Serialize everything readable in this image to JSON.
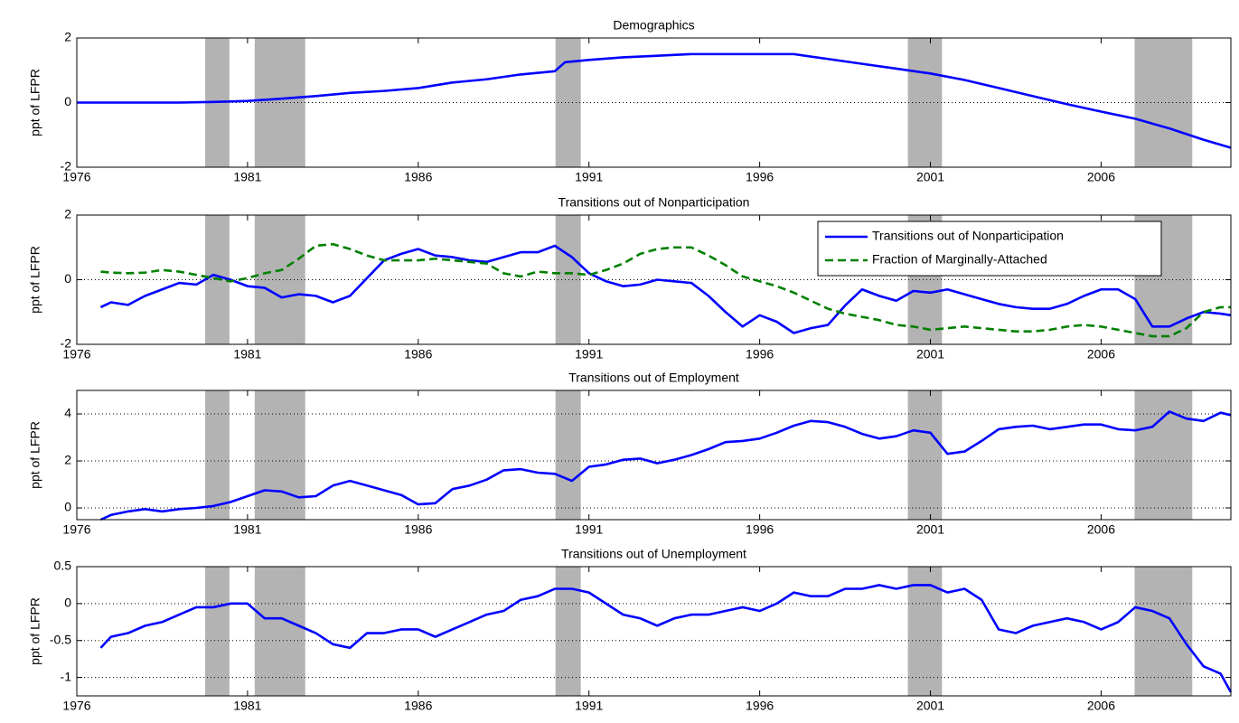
{
  "chart_data": [
    {
      "type": "line",
      "title": "Demographics",
      "y_label": "ppt of LFPR",
      "x": [
        1976,
        1977,
        1978,
        1979,
        1980,
        1981,
        1982,
        1983,
        1984,
        1985,
        1986,
        1987,
        1988,
        1989,
        1990,
        1990.3,
        1991,
        1992,
        1993,
        1994,
        1995,
        1996,
        1997,
        1998,
        1999,
        2000,
        2001,
        2002,
        2003,
        2004,
        2005,
        2006,
        2007,
        2008,
        2009,
        2009.8
      ],
      "series": [
        {
          "name": "Demographics",
          "color": "#0000ff",
          "linestyle": "solid",
          "values": [
            0,
            0,
            0,
            0,
            0.02,
            0.05,
            0.12,
            0.2,
            0.3,
            0.36,
            0.45,
            0.62,
            0.72,
            0.87,
            0.97,
            1.25,
            1.32,
            1.4,
            1.45,
            1.5,
            1.5,
            1.5,
            1.5,
            1.35,
            1.2,
            1.05,
            0.9,
            0.7,
            0.45,
            0.2,
            -0.05,
            -0.28,
            -0.5,
            -0.8,
            -1.15,
            -1.4
          ]
        }
      ],
      "xlim": [
        1976,
        2009.8
      ],
      "xticks": [
        1976,
        1981,
        1986,
        1991,
        1996,
        2001,
        2006
      ],
      "ylim": [
        -2,
        2
      ],
      "yticks": [
        -2,
        0,
        2
      ],
      "grid": true,
      "shade": [
        [
          1979.76,
          1980.47
        ],
        [
          1981.21,
          1982.69
        ],
        [
          1990.02,
          1990.76
        ],
        [
          2000.34,
          2001.34
        ],
        [
          2006.98,
          2008.67
        ]
      ],
      "shade_color": "#b3b3b3"
    },
    {
      "type": "line",
      "title": "Transitions out of Nonparticipation",
      "y_label": "ppt of LFPR",
      "x": [
        1976.7,
        1977,
        1977.5,
        1978,
        1978.5,
        1979,
        1979.5,
        1980,
        1980.5,
        1981,
        1981.5,
        1982,
        1982.5,
        1983,
        1983.5,
        1984,
        1984.5,
        1985,
        1985.5,
        1986,
        1986.5,
        1987,
        1987.5,
        1988,
        1988.5,
        1989,
        1989.5,
        1990,
        1990.5,
        1991,
        1991.5,
        1992,
        1992.5,
        1993,
        1993.5,
        1994,
        1994.5,
        1995,
        1995.5,
        1996,
        1996.5,
        1997,
        1997.5,
        1998,
        1998.5,
        1999,
        1999.5,
        2000,
        2000.5,
        2001,
        2001.5,
        2002,
        2002.5,
        2003,
        2003.5,
        2004,
        2004.5,
        2005,
        2005.5,
        2006,
        2006.5,
        2007,
        2007.5,
        2008,
        2008.5,
        2009,
        2009.5,
        2009.8
      ],
      "series": [
        {
          "name": "Transitions out of Nonparticipation",
          "color": "#0000ff",
          "linestyle": "solid",
          "values": [
            -0.85,
            -0.7,
            -0.78,
            -0.5,
            -0.3,
            -0.1,
            -0.15,
            0.15,
            0,
            -0.2,
            -0.25,
            -0.55,
            -0.45,
            -0.5,
            -0.7,
            -0.5,
            0.05,
            0.6,
            0.8,
            0.95,
            0.75,
            0.7,
            0.6,
            0.55,
            0.7,
            0.85,
            0.85,
            1.05,
            0.7,
            0.2,
            -0.05,
            -0.2,
            -0.15,
            0,
            -0.05,
            -0.1,
            -0.5,
            -1,
            -1.45,
            -1.1,
            -1.3,
            -1.65,
            -1.5,
            -1.4,
            -0.8,
            -0.3,
            -0.5,
            -0.65,
            -0.35,
            -0.4,
            -0.3,
            -0.45,
            -0.6,
            -0.75,
            -0.85,
            -0.9,
            -0.9,
            -0.75,
            -0.5,
            -0.3,
            -0.3,
            -0.6,
            -1.45,
            -1.45,
            -1.2,
            -1,
            -1.05,
            -1.1
          ]
        },
        {
          "name": "Fraction of Marginally-Attached",
          "color": "#008000",
          "linestyle": "dashed",
          "values": [
            0.25,
            0.22,
            0.2,
            0.22,
            0.3,
            0.25,
            0.15,
            0.05,
            -0.05,
            0.05,
            0.2,
            0.3,
            0.65,
            1.05,
            1.1,
            0.95,
            0.75,
            0.6,
            0.6,
            0.6,
            0.65,
            0.6,
            0.55,
            0.5,
            0.2,
            0.1,
            0.25,
            0.2,
            0.2,
            0.15,
            0.3,
            0.5,
            0.8,
            0.95,
            1,
            1,
            0.75,
            0.45,
            0.1,
            -0.05,
            -0.2,
            -0.4,
            -0.65,
            -0.9,
            -1.05,
            -1.15,
            -1.25,
            -1.4,
            -1.45,
            -1.55,
            -1.5,
            -1.45,
            -1.5,
            -1.55,
            -1.6,
            -1.6,
            -1.55,
            -1.45,
            -1.4,
            -1.45,
            -1.55,
            -1.65,
            -1.75,
            -1.75,
            -1.5,
            -1,
            -0.85,
            -0.85
          ]
        }
      ],
      "legend": "upper right",
      "xlim": [
        1976,
        2009.8
      ],
      "xticks": [
        1976,
        1981,
        1986,
        1991,
        1996,
        2001,
        2006
      ],
      "ylim": [
        -2,
        2
      ],
      "yticks": [
        -2,
        0,
        2
      ],
      "grid": true,
      "shade": [
        [
          1979.76,
          1980.47
        ],
        [
          1981.21,
          1982.69
        ],
        [
          1990.02,
          1990.76
        ],
        [
          2000.34,
          2001.34
        ],
        [
          2006.98,
          2008.67
        ]
      ],
      "shade_color": "#b3b3b3"
    },
    {
      "type": "line",
      "title": "Transitions out of Employment",
      "y_label": "ppt of LFPR",
      "x": [
        1976.7,
        1977,
        1977.5,
        1978,
        1978.5,
        1979,
        1979.5,
        1980,
        1980.5,
        1981,
        1981.5,
        1982,
        1982.5,
        1983,
        1983.5,
        1984,
        1984.5,
        1985,
        1985.5,
        1986,
        1986.5,
        1987,
        1987.5,
        1988,
        1988.5,
        1989,
        1989.5,
        1990,
        1990.5,
        1991,
        1991.5,
        1992,
        1992.5,
        1993,
        1993.5,
        1994,
        1994.5,
        1995,
        1995.5,
        1996,
        1996.5,
        1997,
        1997.5,
        1998,
        1998.5,
        1999,
        1999.5,
        2000,
        2000.5,
        2001,
        2001.5,
        2002,
        2002.5,
        2003,
        2003.5,
        2004,
        2004.5,
        2005,
        2005.5,
        2006,
        2006.5,
        2007,
        2007.5,
        2008,
        2008.5,
        2009,
        2009.5,
        2009.8
      ],
      "series": [
        {
          "name": "Transitions out of Employment",
          "color": "#0000ff",
          "linestyle": "solid",
          "values": [
            -0.5,
            -0.3,
            -0.15,
            -0.05,
            -0.15,
            -0.05,
            0,
            0.08,
            0.25,
            0.5,
            0.75,
            0.7,
            0.45,
            0.5,
            0.95,
            1.15,
            0.95,
            0.75,
            0.55,
            0.15,
            0.2,
            0.8,
            0.95,
            1.2,
            1.6,
            1.65,
            1.5,
            1.45,
            1.15,
            1.75,
            1.85,
            2.05,
            2.1,
            1.9,
            2.05,
            2.25,
            2.5,
            2.8,
            2.85,
            2.95,
            3.2,
            3.5,
            3.7,
            3.65,
            3.45,
            3.15,
            2.95,
            3.05,
            3.3,
            3.2,
            2.3,
            2.4,
            2.85,
            3.35,
            3.45,
            3.5,
            3.35,
            3.45,
            3.55,
            3.55,
            3.35,
            3.3,
            3.45,
            4.1,
            3.8,
            3.7,
            4.05,
            3.95
          ]
        }
      ],
      "xlim": [
        1976,
        2009.8
      ],
      "xticks": [
        1976,
        1981,
        1986,
        1991,
        1996,
        2001,
        2006
      ],
      "ylim": [
        -0.5,
        5
      ],
      "yticks": [
        0,
        2,
        4
      ],
      "grid": true,
      "shade": [
        [
          1979.76,
          1980.47
        ],
        [
          1981.21,
          1982.69
        ],
        [
          1990.02,
          1990.76
        ],
        [
          2000.34,
          2001.34
        ],
        [
          2006.98,
          2008.67
        ]
      ],
      "shade_color": "#b3b3b3"
    },
    {
      "type": "line",
      "title": "Transitions out of Unemployment",
      "y_label": "ppt of LFPR",
      "x": [
        1976.7,
        1977,
        1977.5,
        1978,
        1978.5,
        1979,
        1979.5,
        1980,
        1980.5,
        1981,
        1981.5,
        1982,
        1982.5,
        1983,
        1983.5,
        1984,
        1984.5,
        1985,
        1985.5,
        1986,
        1986.5,
        1987,
        1987.5,
        1988,
        1988.5,
        1989,
        1989.5,
        1990,
        1990.5,
        1991,
        1991.5,
        1992,
        1992.5,
        1993,
        1993.5,
        1994,
        1994.5,
        1995,
        1995.5,
        1996,
        1996.5,
        1997,
        1997.5,
        1998,
        1998.5,
        1999,
        1999.5,
        2000,
        2000.5,
        2001,
        2001.5,
        2002,
        2002.5,
        2003,
        2003.5,
        2004,
        2004.5,
        2005,
        2005.5,
        2006,
        2006.5,
        2007,
        2007.5,
        2008,
        2008.5,
        2009,
        2009.5,
        2009.8
      ],
      "series": [
        {
          "name": "Transitions out of Unemployment",
          "color": "#0000ff",
          "linestyle": "solid",
          "values": [
            -0.6,
            -0.45,
            -0.4,
            -0.3,
            -0.25,
            -0.15,
            -0.05,
            -0.05,
            0,
            0,
            -0.2,
            -0.2,
            -0.3,
            -0.4,
            -0.55,
            -0.6,
            -0.4,
            -0.4,
            -0.35,
            -0.35,
            -0.45,
            -0.35,
            -0.25,
            -0.15,
            -0.1,
            0.05,
            0.1,
            0.2,
            0.2,
            0.15,
            0,
            -0.15,
            -0.2,
            -0.3,
            -0.2,
            -0.15,
            -0.15,
            -0.1,
            -0.05,
            -0.1,
            0,
            0.15,
            0.1,
            0.1,
            0.2,
            0.2,
            0.25,
            0.2,
            0.25,
            0.25,
            0.15,
            0.2,
            0.05,
            -0.35,
            -0.4,
            -0.3,
            -0.25,
            -0.2,
            -0.25,
            -0.35,
            -0.25,
            -0.05,
            -0.1,
            -0.2,
            -0.55,
            -0.85,
            -0.95,
            -1.2
          ]
        }
      ],
      "xlim": [
        1976,
        2009.8
      ],
      "xticks": [
        1976,
        1981,
        1986,
        1991,
        1996,
        2001,
        2006
      ],
      "ylim": [
        -1.25,
        0.5
      ],
      "yticks": [
        -1,
        -0.5,
        0,
        0.5
      ],
      "grid": true,
      "shade": [
        [
          1979.76,
          1980.47
        ],
        [
          1981.21,
          1982.69
        ],
        [
          1990.02,
          1990.76
        ],
        [
          2000.34,
          2001.34
        ],
        [
          2006.98,
          2008.67
        ]
      ],
      "shade_color": "#b3b3b3"
    }
  ]
}
